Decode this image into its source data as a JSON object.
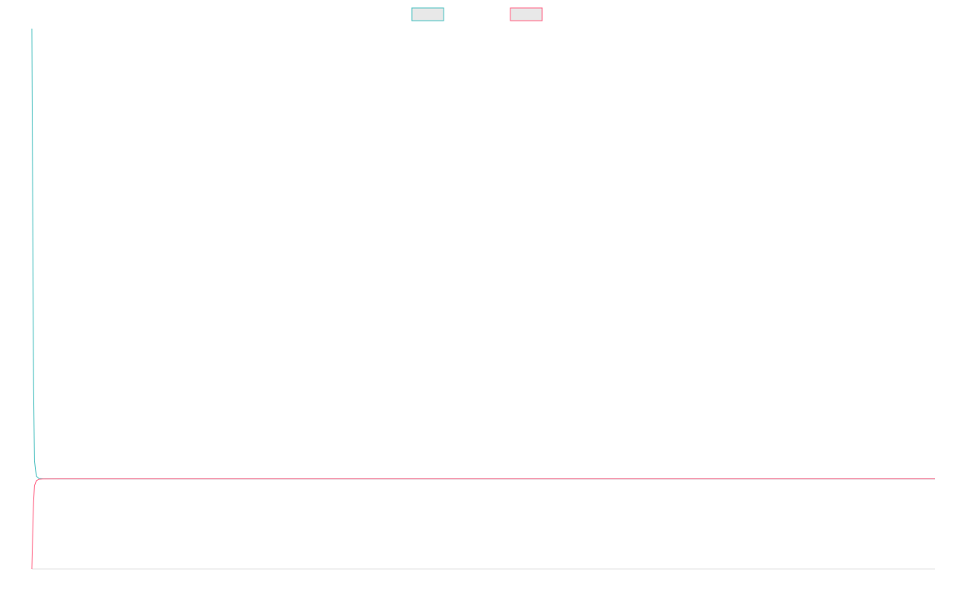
{
  "chart_data": {
    "type": "line",
    "legend_position": "top-center",
    "grid": false,
    "x_axis_visible": false,
    "y_axis_visible": false,
    "xlim": [
      0,
      100
    ],
    "ylim": [
      -20,
      100
    ],
    "series": [
      {
        "color": "#4bc0c0",
        "swatch_fill": "#e8e8e8",
        "values": [
          [
            0,
            100
          ],
          [
            0.1,
            60
          ],
          [
            0.2,
            20
          ],
          [
            0.3,
            4
          ],
          [
            0.5,
            0.6
          ],
          [
            0.8,
            0.1
          ],
          [
            1.2,
            0.02
          ],
          [
            3,
            0
          ],
          [
            20,
            0
          ],
          [
            50,
            0
          ],
          [
            100,
            0
          ]
        ]
      },
      {
        "color": "#ff6384",
        "swatch_fill": "#e8e8e8",
        "values": [
          [
            0,
            -20
          ],
          [
            0.1,
            -12
          ],
          [
            0.2,
            -5
          ],
          [
            0.3,
            -1.5
          ],
          [
            0.5,
            -0.4
          ],
          [
            0.8,
            -0.08
          ],
          [
            1.2,
            -0.02
          ],
          [
            3,
            0
          ],
          [
            20,
            0
          ],
          [
            50,
            0
          ],
          [
            100,
            0
          ]
        ]
      }
    ]
  }
}
